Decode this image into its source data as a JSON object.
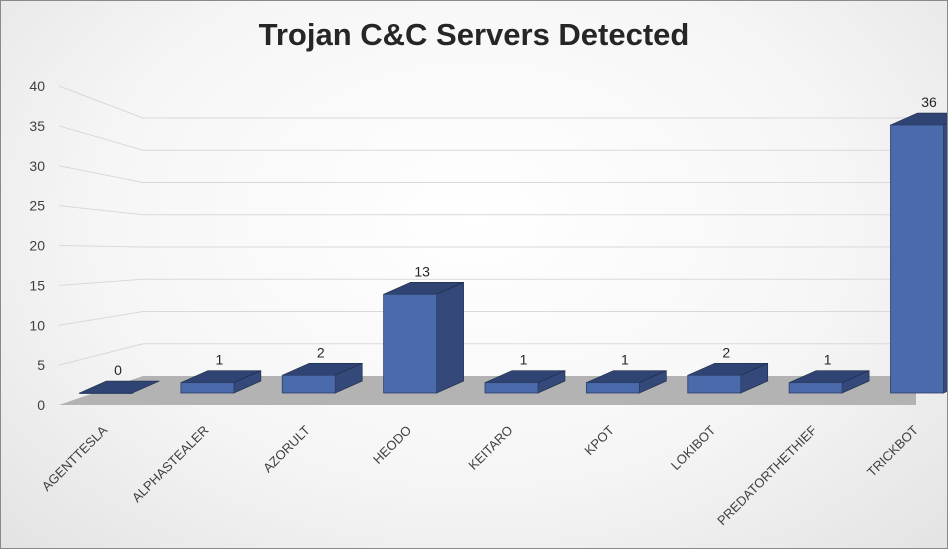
{
  "chart_data": {
    "type": "bar",
    "title": "Trojan C&C Servers Detected",
    "categories": [
      "AGENTTESLA",
      "ALPHASTEALER",
      "AZORULT",
      "HEODO",
      "KEITARO",
      "KPOT",
      "LOKIBOT",
      "PREDATORTHETHIEF",
      "TRICKBOT"
    ],
    "values": [
      0,
      1,
      2,
      13,
      1,
      1,
      2,
      1,
      36
    ],
    "data_labels": [
      "0",
      "1",
      "2",
      "13",
      "1",
      "1",
      "2",
      "1",
      "36"
    ],
    "yticks": [
      "0",
      "5",
      "10",
      "15",
      "20",
      "25",
      "30",
      "35",
      "40"
    ],
    "ylim": [
      0,
      40
    ],
    "grid": true,
    "legend": "none",
    "style": "3d-column",
    "colors": {
      "bar_front": "#4a6aab",
      "bar_side": "#263653",
      "bar_top": "#304473",
      "floor": "#b3b3b3",
      "grid": "#d9d9d9"
    }
  }
}
